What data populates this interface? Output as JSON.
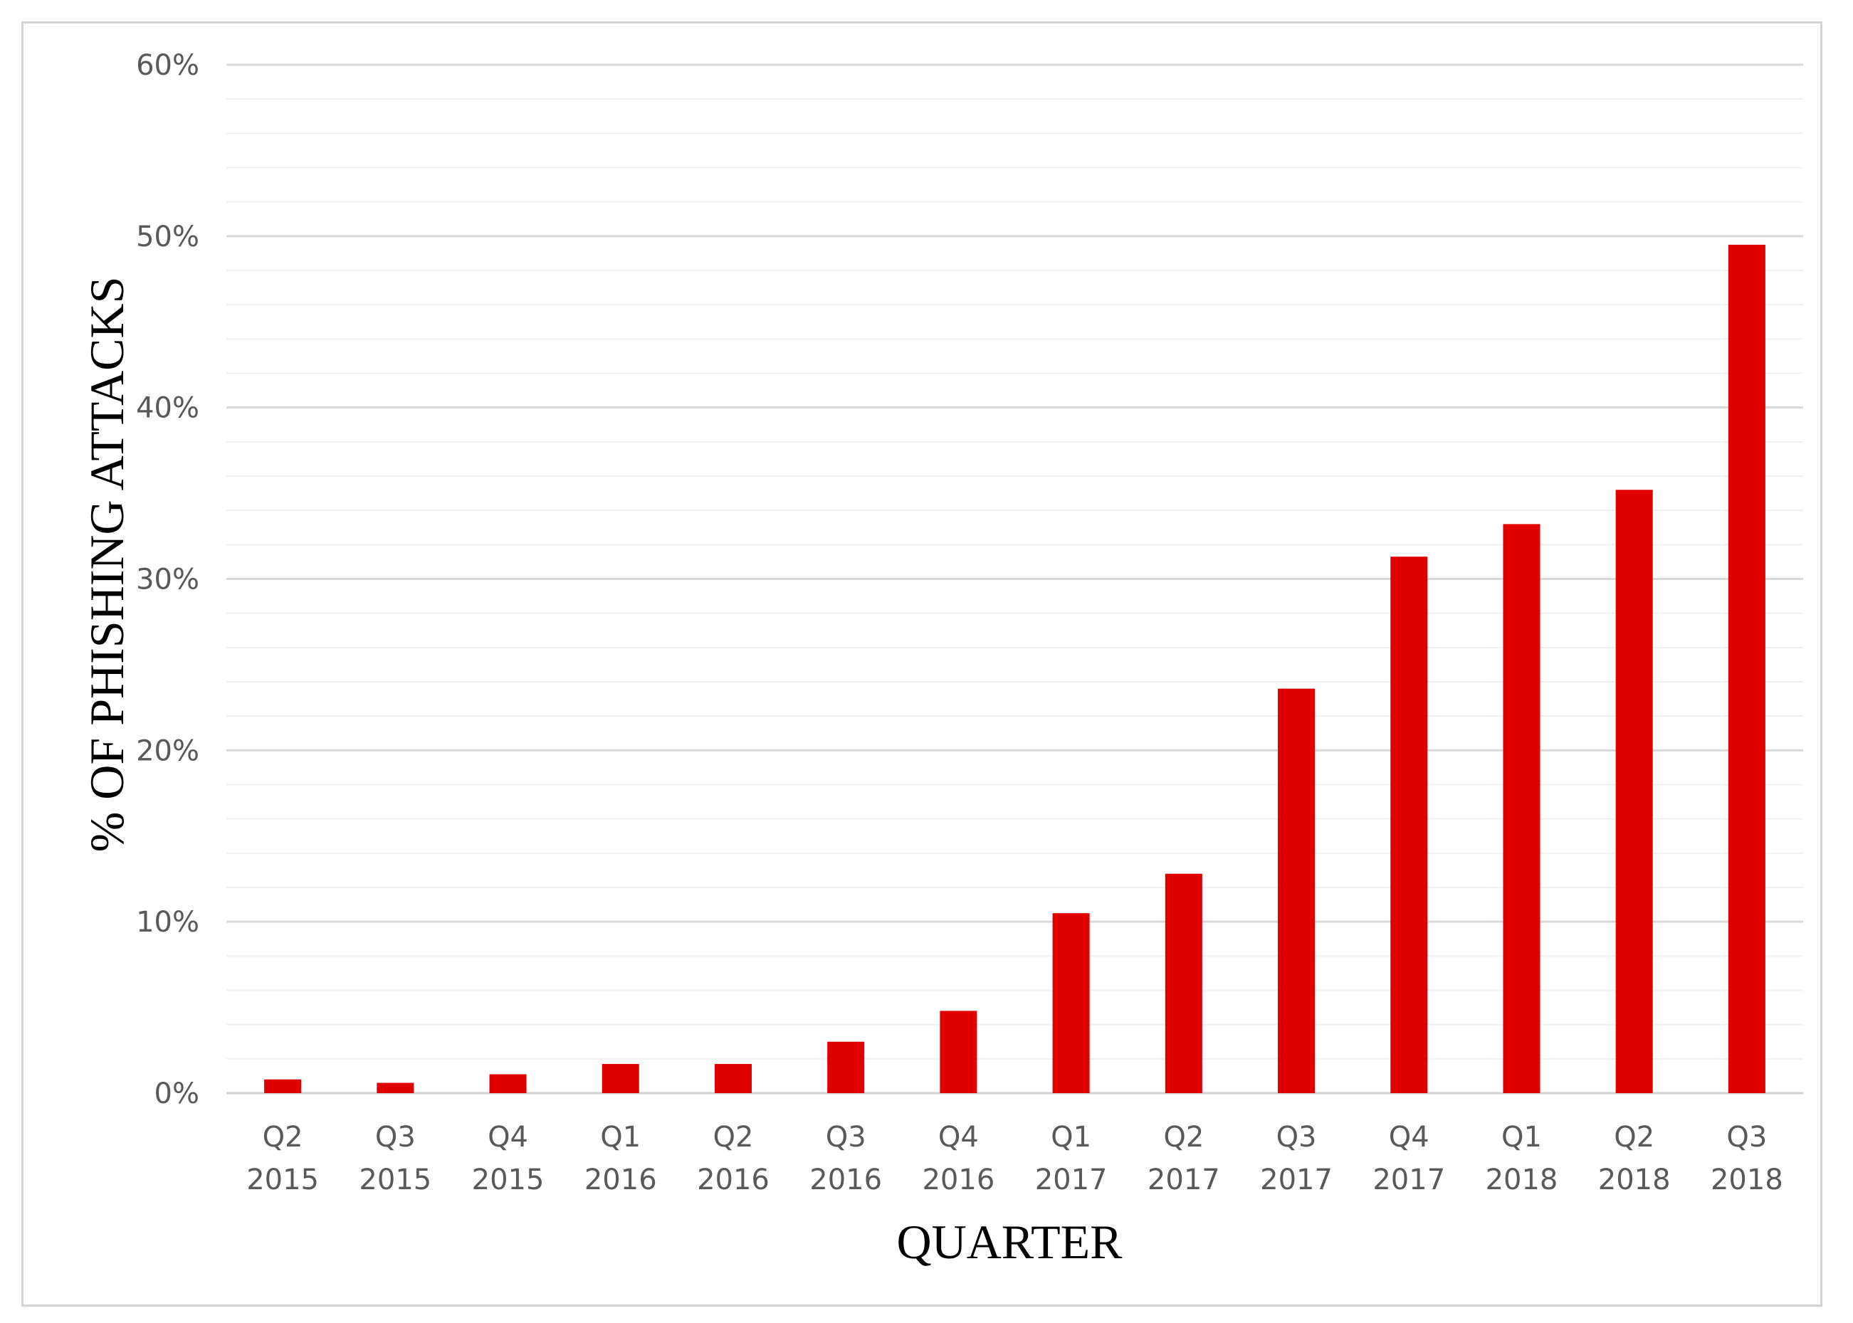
{
  "chart_data": {
    "type": "bar",
    "title": "",
    "xlabel": "QUARTER",
    "ylabel": "% OF PHISHING ATTACKS",
    "categories": [
      [
        "Q2",
        "2015"
      ],
      [
        "Q3",
        "2015"
      ],
      [
        "Q4",
        "2015"
      ],
      [
        "Q1",
        "2016"
      ],
      [
        "Q2",
        "2016"
      ],
      [
        "Q3",
        "2016"
      ],
      [
        "Q4",
        "2016"
      ],
      [
        "Q1",
        "2017"
      ],
      [
        "Q2",
        "2017"
      ],
      [
        "Q3",
        "2017"
      ],
      [
        "Q4",
        "2017"
      ],
      [
        "Q1",
        "2018"
      ],
      [
        "Q2",
        "2018"
      ],
      [
        "Q3",
        "2018"
      ]
    ],
    "values": [
      0.8,
      0.6,
      1.1,
      1.7,
      1.7,
      3.0,
      4.8,
      10.5,
      12.8,
      23.6,
      31.3,
      33.2,
      35.2,
      49.5
    ],
    "y_unit": "%",
    "ylim": [
      0,
      60
    ],
    "yticks": [
      0,
      10,
      20,
      30,
      40,
      50,
      60
    ],
    "ytick_labels": [
      "0%",
      "10%",
      "20%",
      "30%",
      "40%",
      "50%",
      "60%"
    ],
    "minor_grid_step": 2,
    "grid": true,
    "legend": false,
    "bar_color": "#e00000",
    "grid_color": "#d9d9d9",
    "minor_grid_color": "#f0f0f0"
  }
}
